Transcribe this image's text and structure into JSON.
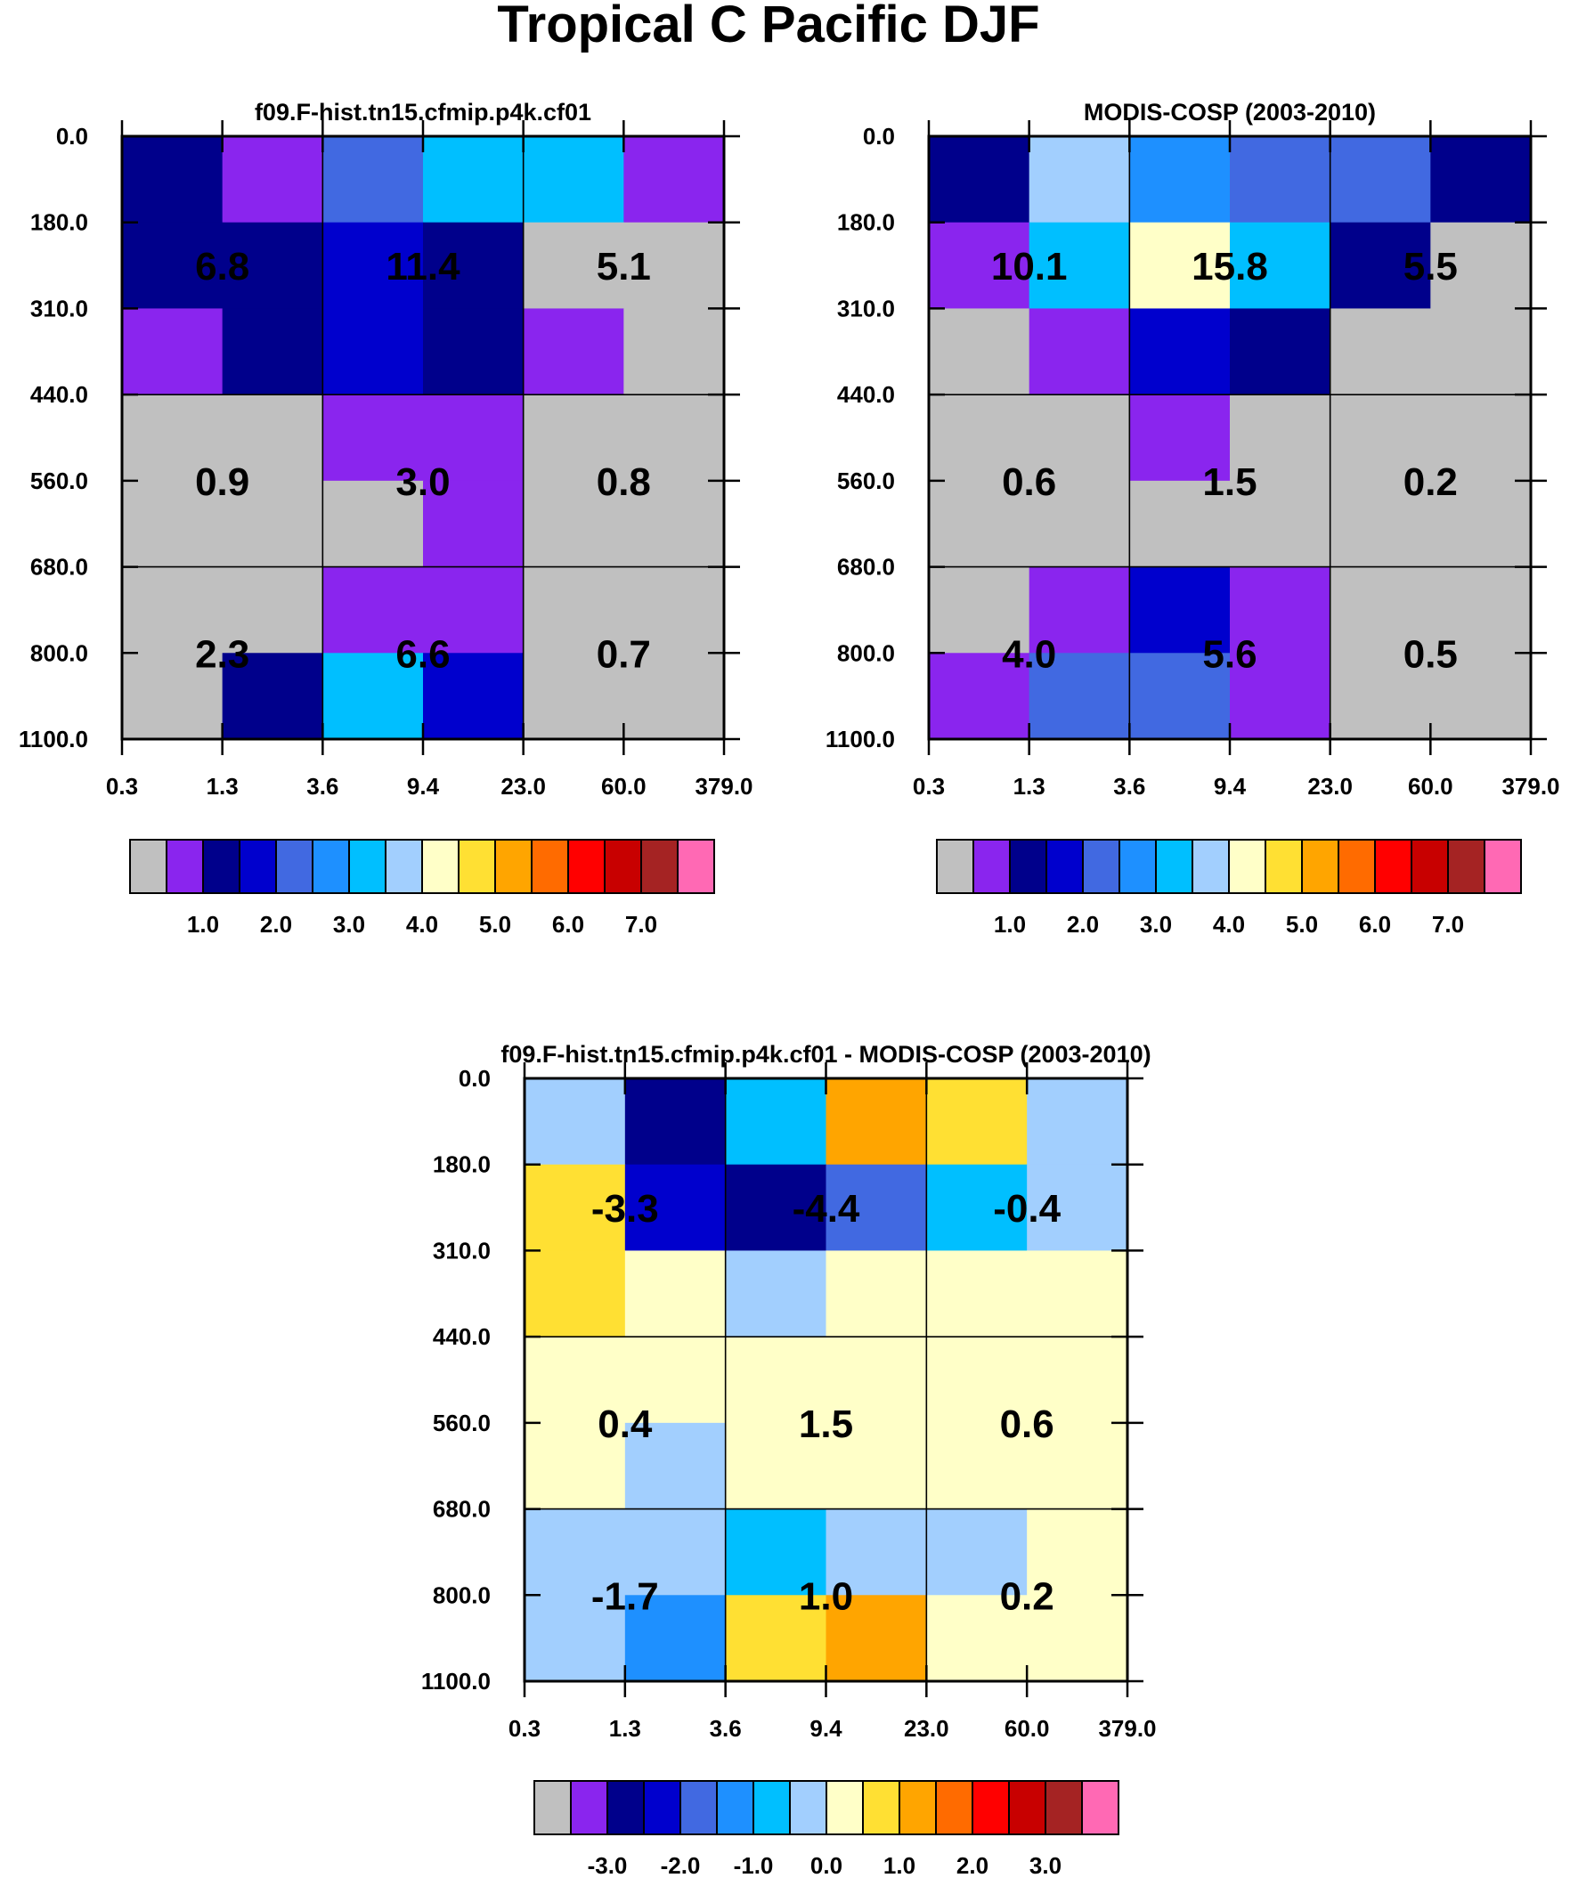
{
  "figure_title": "Tropical C Pacific DJF",
  "palette": {
    "gray": "#c0c0c0",
    "purple": "#8a25ee",
    "navy": "#00008b",
    "mediumblue": "#0000cd",
    "royalblue": "#4169e1",
    "dodgerblue": "#1e90ff",
    "deepskyblue": "#00bfff",
    "lightblue": "#a2cffe",
    "lightyellow": "#ffffc8",
    "gold": "#ffe033",
    "orange": "#ffa500",
    "darkorange": "#ff6b00",
    "red": "#ff0000",
    "crimson": "#c80000",
    "brown": "#a52323",
    "pink": "#ff69b4"
  },
  "colorbar_order": [
    "gray",
    "purple",
    "navy",
    "mediumblue",
    "royalblue",
    "dodgerblue",
    "deepskyblue",
    "lightblue",
    "lightyellow",
    "gold",
    "orange",
    "darkorange",
    "red",
    "crimson",
    "brown",
    "pink"
  ],
  "chart_data": [
    {
      "type": "heatmap",
      "title": "f09.F-hist.tn15.cfmip.p4k.cf01",
      "x_ticks": [
        "0.3",
        "1.3",
        "3.6",
        "9.4",
        "23.0",
        "60.0",
        "379.0"
      ],
      "y_ticks": [
        "0.0",
        "180.0",
        "310.0",
        "440.0",
        "560.0",
        "680.0",
        "800.0",
        "1100.0"
      ],
      "cells": [
        [
          "navy",
          "purple",
          "royalblue",
          "deepskyblue",
          "deepskyblue",
          "purple"
        ],
        [
          "navy",
          "navy",
          "mediumblue",
          "navy",
          "gray",
          "gray"
        ],
        [
          "purple",
          "navy",
          "mediumblue",
          "navy",
          "purple",
          "gray"
        ],
        [
          "gray",
          "gray",
          "purple",
          "purple",
          "gray",
          "gray"
        ],
        [
          "gray",
          "gray",
          "gray",
          "purple",
          "gray",
          "gray"
        ],
        [
          "gray",
          "gray",
          "purple",
          "purple",
          "gray",
          "gray"
        ],
        [
          "gray",
          "navy",
          "deepskyblue",
          "mediumblue",
          "gray",
          "gray"
        ]
      ],
      "box_values": [
        [
          "6.8",
          "11.4",
          "5.1"
        ],
        [
          "0.9",
          "3.0",
          "0.8"
        ],
        [
          "2.3",
          "6.6",
          "0.7"
        ]
      ],
      "colorbar_labels": [
        "1.0",
        "2.0",
        "3.0",
        "4.0",
        "5.0",
        "6.0",
        "7.0"
      ]
    },
    {
      "type": "heatmap",
      "title": "MODIS-COSP (2003-2010)",
      "x_ticks": [
        "0.3",
        "1.3",
        "3.6",
        "9.4",
        "23.0",
        "60.0",
        "379.0"
      ],
      "y_ticks": [
        "0.0",
        "180.0",
        "310.0",
        "440.0",
        "560.0",
        "680.0",
        "800.0",
        "1100.0"
      ],
      "cells": [
        [
          "navy",
          "lightblue",
          "dodgerblue",
          "royalblue",
          "royalblue",
          "navy"
        ],
        [
          "purple",
          "deepskyblue",
          "lightyellow",
          "deepskyblue",
          "navy",
          "gray"
        ],
        [
          "gray",
          "purple",
          "mediumblue",
          "navy",
          "gray",
          "gray"
        ],
        [
          "gray",
          "gray",
          "purple",
          "gray",
          "gray",
          "gray"
        ],
        [
          "gray",
          "gray",
          "gray",
          "gray",
          "gray",
          "gray"
        ],
        [
          "gray",
          "purple",
          "mediumblue",
          "purple",
          "gray",
          "gray"
        ],
        [
          "purple",
          "royalblue",
          "royalblue",
          "purple",
          "gray",
          "gray"
        ]
      ],
      "box_values": [
        [
          "10.1",
          "15.8",
          "5.5"
        ],
        [
          "0.6",
          "1.5",
          "0.2"
        ],
        [
          "4.0",
          "5.6",
          "0.5"
        ]
      ],
      "colorbar_labels": [
        "1.0",
        "2.0",
        "3.0",
        "4.0",
        "5.0",
        "6.0",
        "7.0"
      ]
    },
    {
      "type": "heatmap",
      "title": "f09.F-hist.tn15.cfmip.p4k.cf01 - MODIS-COSP (2003-2010)",
      "x_ticks": [
        "0.3",
        "1.3",
        "3.6",
        "9.4",
        "23.0",
        "60.0",
        "379.0"
      ],
      "y_ticks": [
        "0.0",
        "180.0",
        "310.0",
        "440.0",
        "560.0",
        "680.0",
        "800.0",
        "1100.0"
      ],
      "cells": [
        [
          "lightblue",
          "navy",
          "deepskyblue",
          "orange",
          "gold",
          "lightblue"
        ],
        [
          "gold",
          "mediumblue",
          "navy",
          "royalblue",
          "deepskyblue",
          "lightblue"
        ],
        [
          "gold",
          "lightyellow",
          "lightblue",
          "lightyellow",
          "lightyellow",
          "lightyellow"
        ],
        [
          "lightyellow",
          "lightyellow",
          "lightyellow",
          "lightyellow",
          "lightyellow",
          "lightyellow"
        ],
        [
          "lightyellow",
          "lightblue",
          "lightyellow",
          "lightyellow",
          "lightyellow",
          "lightyellow"
        ],
        [
          "lightblue",
          "lightblue",
          "deepskyblue",
          "lightblue",
          "lightblue",
          "lightyellow"
        ],
        [
          "lightblue",
          "dodgerblue",
          "gold",
          "orange",
          "lightyellow",
          "lightyellow"
        ]
      ],
      "box_values": [
        [
          "-3.3",
          "-4.4",
          "-0.4"
        ],
        [
          "0.4",
          "1.5",
          "0.6"
        ],
        [
          "-1.7",
          "1.0",
          "0.2"
        ]
      ],
      "colorbar_labels": [
        "-3.0",
        "-2.0",
        "-1.0",
        "0.0",
        "1.0",
        "2.0",
        "3.0"
      ]
    }
  ]
}
